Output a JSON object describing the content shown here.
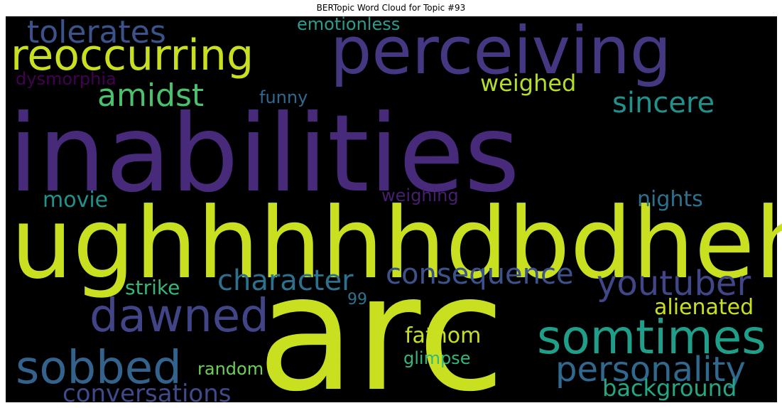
{
  "chart_data": {
    "type": "wordcloud",
    "title": "BERTopic Word Cloud for Topic #93",
    "background": "#000000",
    "words": [
      {
        "text": "inabilities",
        "color": "#472a7a"
      },
      {
        "text": "ughhhhhdbdheh",
        "color": "#c8e020"
      },
      {
        "text": "arc",
        "color": "#c8e020"
      },
      {
        "text": "perceiving",
        "color": "#453781"
      },
      {
        "text": "reoccurring",
        "color": "#c8e020"
      },
      {
        "text": "tolerates",
        "color": "#3b528b"
      },
      {
        "text": "emotionless",
        "color": "#2a9d8f"
      },
      {
        "text": "dysmorphia",
        "color": "#440154"
      },
      {
        "text": "amidst",
        "color": "#4ac16d"
      },
      {
        "text": "funny",
        "color": "#31688e"
      },
      {
        "text": "weighed",
        "color": "#b5de2b"
      },
      {
        "text": "sincere",
        "color": "#21918c"
      },
      {
        "text": "movie",
        "color": "#21918c"
      },
      {
        "text": "weighing",
        "color": "#481f70"
      },
      {
        "text": "nights",
        "color": "#2c728e"
      },
      {
        "text": "character",
        "color": "#2c728e"
      },
      {
        "text": "consequence",
        "color": "#3b528b"
      },
      {
        "text": "youtuber",
        "color": "#404688"
      },
      {
        "text": "strike",
        "color": "#35b779"
      },
      {
        "text": "99",
        "color": "#2c728e"
      },
      {
        "text": "dawned",
        "color": "#414487"
      },
      {
        "text": "alienated",
        "color": "#c8e020"
      },
      {
        "text": "somtimes",
        "color": "#1f9e89"
      },
      {
        "text": "fathom",
        "color": "#c8e020"
      },
      {
        "text": "sobbed",
        "color": "#33638d"
      },
      {
        "text": "personality",
        "color": "#31688e"
      },
      {
        "text": "glimpse",
        "color": "#35b779"
      },
      {
        "text": "random",
        "color": "#6ece58"
      },
      {
        "text": "background",
        "color": "#22a884"
      },
      {
        "text": "conversations",
        "color": "#3e4a89"
      }
    ]
  }
}
